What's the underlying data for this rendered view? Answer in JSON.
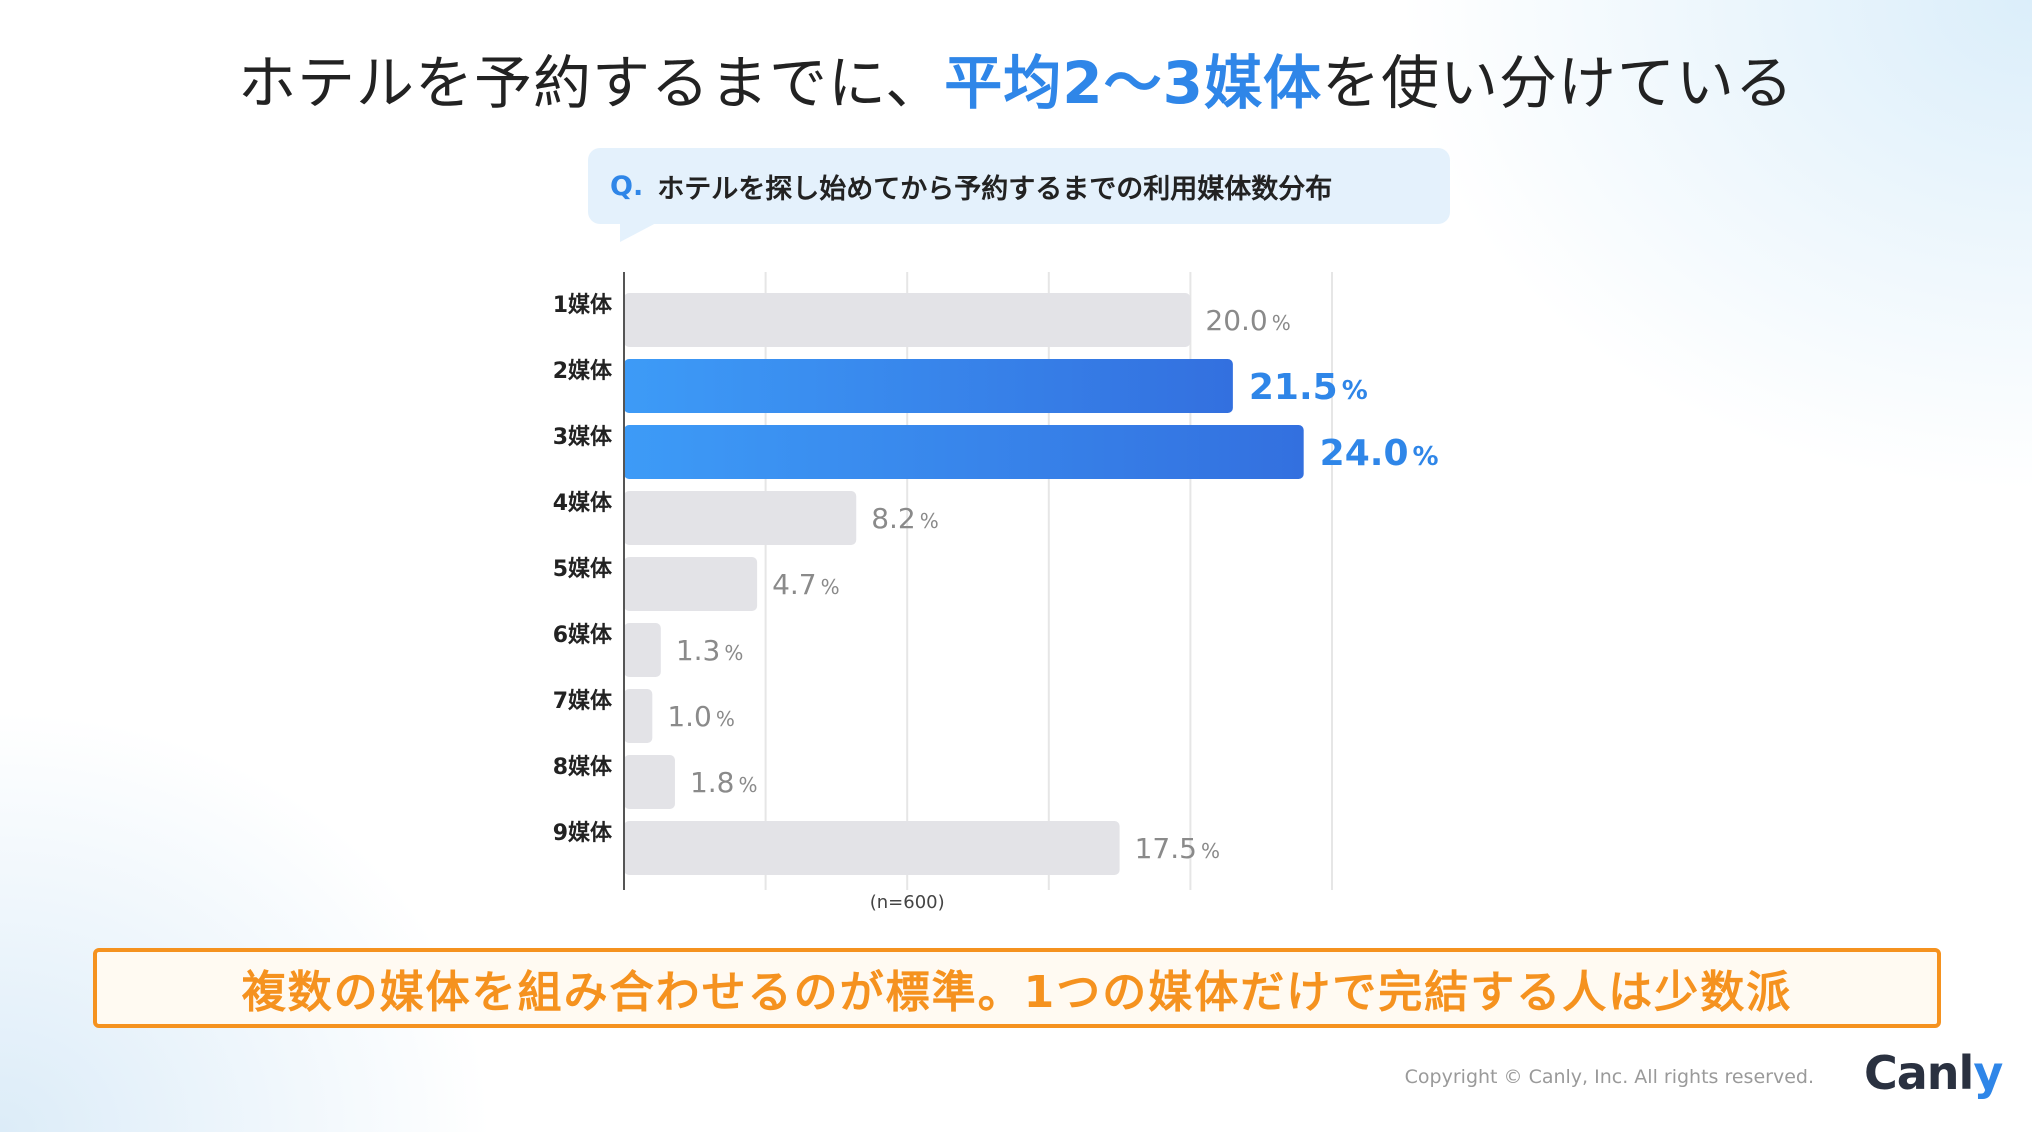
{
  "title": {
    "prefix": "ホテルを予約するまでに、",
    "highlight": "平均2～3媒体",
    "suffix": "を使い分けている"
  },
  "question": {
    "mark": "Q.",
    "text": "ホテルを探し始めてから予約するまでの利用媒体数分布"
  },
  "chart_data": {
    "type": "bar",
    "orientation": "horizontal",
    "title": "ホテルを探し始めてから予約するまでの利用媒体数分布",
    "categories": [
      "1媒体",
      "2媒体",
      "3媒体",
      "4媒体",
      "5媒体",
      "6媒体",
      "7媒体",
      "8媒体",
      "9媒体"
    ],
    "values": [
      20.0,
      21.5,
      24.0,
      8.2,
      4.7,
      1.3,
      1.0,
      1.8,
      17.5
    ],
    "value_labels": [
      "20.0",
      "21.5",
      "24.0",
      "8.2",
      "4.7",
      "1.3",
      "1.0",
      "1.8",
      "17.5"
    ],
    "unit": "%",
    "highlighted": [
      "2媒体",
      "3媒体"
    ],
    "xlim": [
      0,
      25
    ],
    "grid": true,
    "note": "(n=600)"
  },
  "colors": {
    "accent": "#2f86e8",
    "bar_default": "#e3e3e7",
    "bar_highlight_start": "#3d9bf7",
    "bar_highlight_end": "#3370df",
    "summary": "#f5921f"
  },
  "summary": "複数の媒体を組み合わせるのが標準。1つの媒体だけで完結する人は少数派",
  "footer": {
    "copyright": "Copyright © Canly, Inc. All rights reserved.",
    "logo_main": "Canl",
    "logo_accent": "y"
  }
}
